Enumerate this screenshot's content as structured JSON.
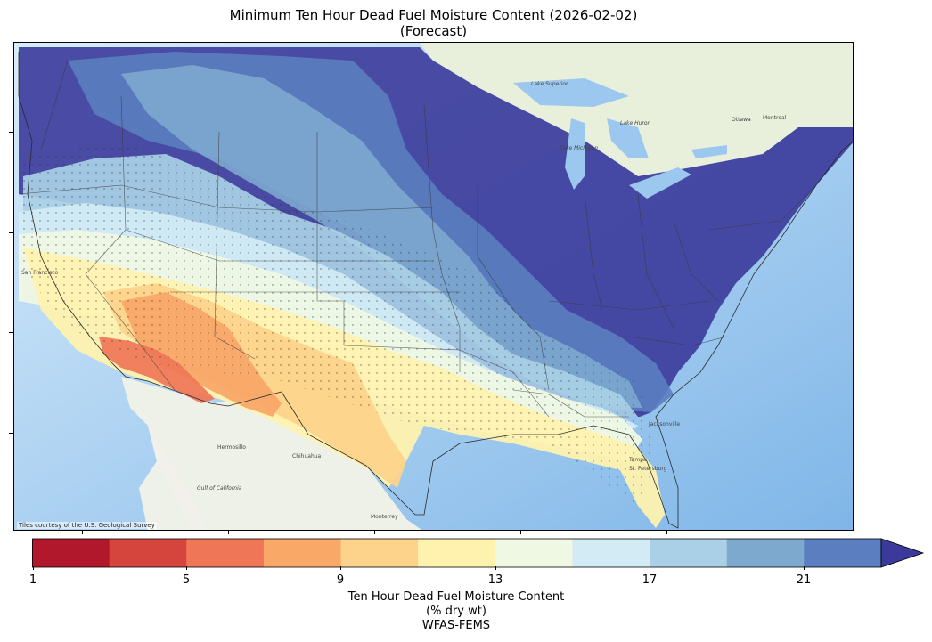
{
  "title": {
    "line1": "Minimum Ten Hour Dead Fuel Moisture Content (2026-02-02)",
    "line2": "(Forecast)"
  },
  "map": {
    "basemap_credit": "Tiles courtesy of the U.S. Geological Survey",
    "region": "Contiguous United States",
    "place_labels": [
      "Hermosillo",
      "Chihuahua",
      "Monterrey",
      "Gulf of California",
      "San Francisco",
      "Jacksonville",
      "Tampa",
      "St. Petersburg",
      "Ottawa",
      "Montreal",
      "Lake Superior",
      "Lake Huron",
      "Lake Michigan"
    ]
  },
  "colorbar": {
    "ticks": [
      "1",
      "5",
      "9",
      "13",
      "17",
      "21"
    ],
    "colors": [
      "#b2182b",
      "#d6453d",
      "#ef7657",
      "#f9a868",
      "#fdd28a",
      "#fff2ae",
      "#eff8e3",
      "#d3ebf5",
      "#a9d0e6",
      "#7da9cf",
      "#5b7ec0"
    ],
    "extend_color": "#3b3a9a",
    "label_line1": "Ten Hour Dead Fuel Moisture Content",
    "label_line2": "(% dry wt)",
    "label_line3": "WFAS-FEMS"
  }
}
